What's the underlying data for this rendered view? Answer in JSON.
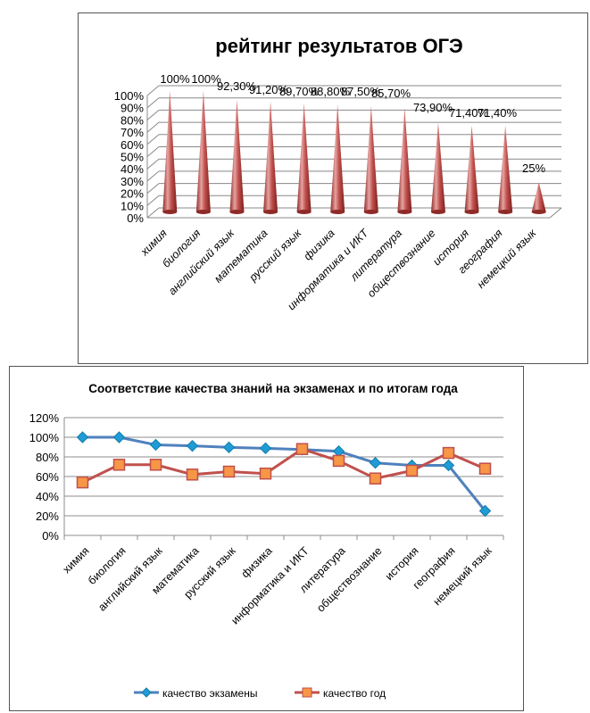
{
  "chart_data": [
    {
      "type": "bar",
      "style": "3d-cone",
      "title": "рейтинг результатов ОГЭ",
      "categories": [
        "химия",
        "биология",
        "английский язык",
        "математика",
        "русский язык",
        "физика",
        "информатика и ИКТ",
        "литература",
        "обществознание",
        "история",
        "география",
        "немецкий язык"
      ],
      "values": [
        100,
        100,
        92.3,
        91.2,
        89.7,
        88.8,
        87.5,
        85.7,
        73.9,
        71.4,
        71.4,
        25
      ],
      "data_labels": [
        "100%",
        "100%",
        "92,30%",
        "91,20%",
        "89,70%",
        "88,80%",
        "87,50%",
        "85,70%",
        "73,90%",
        "71,40%",
        "71,40%",
        "25%"
      ],
      "yticks": [
        "0%",
        "10%",
        "20%",
        "30%",
        "40%",
        "50%",
        "60%",
        "70%",
        "80%",
        "90%",
        "100%"
      ],
      "ylim": [
        0,
        100
      ],
      "colors": {
        "cone": "#c0504d",
        "cone_light": "#e6a3a1",
        "cone_dark": "#8e2a27"
      }
    },
    {
      "type": "line",
      "title": "Соответствие качества знаний на экзаменах и по итогам года",
      "categories": [
        "химия",
        "биология",
        "английский язык",
        "математика",
        "русский язык",
        "физика",
        "информатика и ИКТ",
        "литература",
        "обществознание",
        "история",
        "география",
        "немецкий язык"
      ],
      "series": [
        {
          "name": "качество экзамены",
          "values": [
            100,
            100,
            92.3,
            91.2,
            89.7,
            88.8,
            87.5,
            85.7,
            73.9,
            71.4,
            71.4,
            25
          ],
          "color": "#4f81bd",
          "color_dark": "#1f9bd7",
          "marker": "diamond"
        },
        {
          "name": "качество год",
          "values": [
            54,
            72,
            72,
            62,
            65,
            63,
            88,
            76,
            58,
            66,
            84,
            68
          ],
          "color": "#c0504d",
          "marker_color": "#f79646",
          "marker": "square"
        }
      ],
      "yticks": [
        "0%",
        "20%",
        "40%",
        "60%",
        "80%",
        "100%",
        "120%"
      ],
      "ylim": [
        0,
        120
      ],
      "legend_position": "bottom"
    }
  ]
}
